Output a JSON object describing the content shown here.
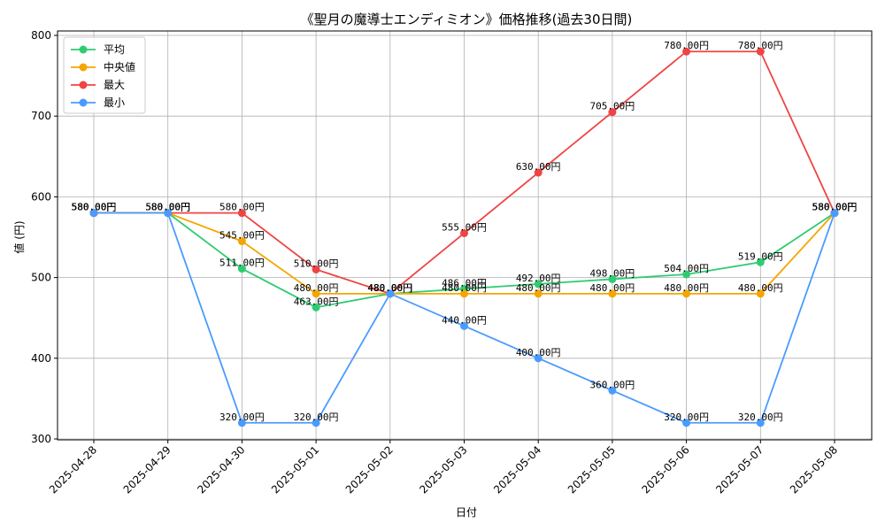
{
  "chart_data": {
    "type": "line",
    "title": "《聖月の魔導士エンディミオン》価格推移(過去30日間)",
    "xlabel": "日付",
    "ylabel": "値 (円)",
    "categories": [
      "2025-04-28",
      "2025-04-29",
      "2025-04-30",
      "2025-05-01",
      "2025-05-02",
      "2025-05-03",
      "2025-05-04",
      "2025-05-05",
      "2025-05-06",
      "2025-05-07",
      "2025-05-08"
    ],
    "ylim": [
      300,
      800
    ],
    "yticks": [
      300,
      400,
      500,
      600,
      700,
      800
    ],
    "grid": true,
    "legend_position": "top-left",
    "value_suffix": "円",
    "series": [
      {
        "name": "平均",
        "color": "#2ecc71",
        "values": [
          580,
          580,
          511,
          463,
          480,
          486,
          492,
          498,
          504,
          519,
          580
        ]
      },
      {
        "name": "中央値",
        "color": "#f5a500",
        "values": [
          580,
          580,
          545,
          480,
          480,
          480,
          480,
          480,
          480,
          480,
          580
        ]
      },
      {
        "name": "最大",
        "color": "#ef4444",
        "values": [
          580,
          580,
          580,
          510,
          480,
          555,
          630,
          705,
          780,
          780,
          580
        ]
      },
      {
        "name": "最小",
        "color": "#4a9bff",
        "values": [
          580,
          580,
          320,
          320,
          480,
          440,
          400,
          360,
          320,
          320,
          580
        ]
      }
    ]
  }
}
